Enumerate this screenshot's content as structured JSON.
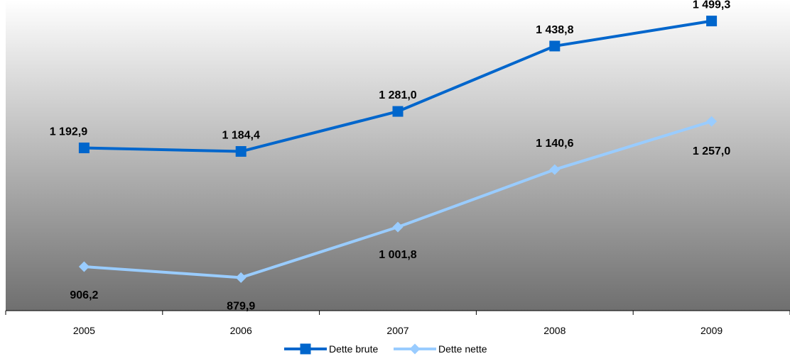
{
  "chart_data": {
    "type": "line",
    "categories": [
      "2005",
      "2006",
      "2007",
      "2008",
      "2009"
    ],
    "series": [
      {
        "name": "Dette brute",
        "values": [
          1192.9,
          1184.4,
          1281.0,
          1438.8,
          1499.3
        ],
        "labels": [
          "1 192,9",
          "1 184,4",
          "1 281,0",
          "1 438,8",
          "1 499,3"
        ],
        "color": "#0066cc",
        "marker": "square"
      },
      {
        "name": "Dette nette",
        "values": [
          906.2,
          879.9,
          1001.8,
          1140.6,
          1257.0
        ],
        "labels": [
          "906,2",
          "879,9",
          "1 001,8",
          "1 140,6",
          "1 257,0"
        ],
        "color": "#99ccff",
        "marker": "diamond"
      }
    ],
    "ylim": [
      800,
      1550
    ],
    "grid": false,
    "legend_position": "bottom",
    "plot_background": "vertical gradient from #ffffff (top) to #6f6f6f (bottom)"
  }
}
